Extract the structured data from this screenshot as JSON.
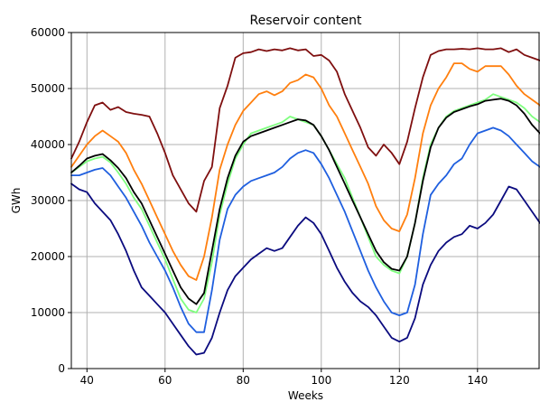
{
  "chart_data": {
    "type": "line",
    "title": "Reservoir content",
    "xlabel": "Weeks",
    "ylabel": "GWh",
    "xlim": [
      36,
      156
    ],
    "ylim": [
      0,
      60000
    ],
    "xticks": [
      40,
      60,
      80,
      100,
      120,
      140
    ],
    "yticks": [
      0,
      10000,
      20000,
      30000,
      40000,
      50000,
      60000
    ],
    "xtick_labels": [
      "40",
      "60",
      "80",
      "100",
      "120",
      "140"
    ],
    "ytick_labels": [
      "0",
      "10000",
      "20000",
      "30000",
      "40000",
      "50000",
      "60000"
    ],
    "grid": true,
    "legend": "none",
    "series": [
      {
        "color": "#7f0f0f",
        "x": [
          36,
          38,
          40,
          42,
          44,
          46,
          48,
          50,
          52,
          54,
          56,
          58,
          60,
          62,
          64,
          66,
          68,
          70,
          72,
          74,
          76,
          78,
          80,
          82,
          84,
          86,
          88,
          90,
          92,
          94,
          96,
          98,
          100,
          102,
          104,
          106,
          108,
          110,
          112,
          114,
          116,
          118,
          120,
          122,
          124,
          126,
          128,
          130,
          132,
          134,
          136,
          138,
          140,
          142,
          144,
          146,
          148,
          150,
          152,
          154,
          156
        ],
        "y": [
          37500,
          40500,
          44000,
          47000,
          47500,
          46200,
          46700,
          45800,
          45500,
          45300,
          45000,
          42000,
          38500,
          34500,
          32000,
          29500,
          28000,
          33500,
          36000,
          46500,
          50500,
          55500,
          56300,
          56500,
          57000,
          56700,
          57000,
          56800,
          57200,
          56800,
          57000,
          55800,
          56000,
          55000,
          53000,
          49000,
          46000,
          43000,
          39500,
          38000,
          40000,
          38500,
          36500,
          40500,
          46500,
          52000,
          56000,
          56700,
          57000,
          57000,
          57100,
          57000,
          57200,
          57000,
          57000,
          57200,
          56500,
          57000,
          56000,
          55500,
          55000
        ]
      },
      {
        "color": "#ff7f0e",
        "x": [
          36,
          38,
          40,
          42,
          44,
          46,
          48,
          50,
          52,
          54,
          56,
          58,
          60,
          62,
          64,
          66,
          68,
          70,
          72,
          74,
          76,
          78,
          80,
          82,
          84,
          86,
          88,
          90,
          92,
          94,
          96,
          98,
          100,
          102,
          104,
          106,
          108,
          110,
          112,
          114,
          116,
          118,
          120,
          122,
          124,
          126,
          128,
          130,
          132,
          134,
          136,
          138,
          140,
          142,
          144,
          146,
          148,
          150,
          152,
          154,
          156
        ],
        "y": [
          36000,
          38000,
          40000,
          41500,
          42500,
          41500,
          40500,
          38500,
          35500,
          33000,
          30000,
          27000,
          24000,
          21000,
          18500,
          16500,
          15800,
          20000,
          27000,
          35500,
          40000,
          43500,
          46000,
          47500,
          49000,
          49500,
          48800,
          49500,
          51000,
          51500,
          52500,
          52000,
          50000,
          47000,
          45000,
          42000,
          39000,
          36000,
          33000,
          29000,
          26500,
          25000,
          24500,
          27500,
          34000,
          42000,
          47000,
          50000,
          52000,
          54500,
          54500,
          53500,
          53000,
          54000,
          54000,
          54000,
          52500,
          50500,
          49000,
          48000,
          47000
        ]
      },
      {
        "color": "#7fff7f",
        "x": [
          36,
          38,
          40,
          42,
          44,
          46,
          48,
          50,
          52,
          54,
          56,
          58,
          60,
          62,
          64,
          66,
          68,
          70,
          72,
          74,
          76,
          78,
          80,
          82,
          84,
          86,
          88,
          90,
          92,
          94,
          96,
          98,
          100,
          102,
          104,
          106,
          108,
          110,
          112,
          114,
          116,
          118,
          120,
          122,
          124,
          126,
          128,
          130,
          132,
          134,
          136,
          138,
          140,
          142,
          144,
          146,
          148,
          150,
          152,
          154,
          156
        ],
        "y": [
          35000,
          36000,
          37000,
          37500,
          37800,
          36800,
          35000,
          33000,
          30500,
          28500,
          25500,
          22500,
          19500,
          16000,
          12500,
          10500,
          10000,
          12500,
          19000,
          27500,
          33000,
          37500,
          40000,
          42000,
          42500,
          43000,
          43500,
          44000,
          45000,
          44500,
          44000,
          43500,
          41500,
          39000,
          36500,
          34000,
          30500,
          27000,
          23500,
          20000,
          18500,
          17500,
          17000,
          20000,
          26000,
          34000,
          40000,
          43000,
          45000,
          46000,
          46500,
          47000,
          47500,
          48000,
          49000,
          48500,
          48000,
          47500,
          46500,
          45000,
          44000
        ]
      },
      {
        "color": "#000000",
        "x": [
          36,
          38,
          40,
          42,
          44,
          46,
          48,
          50,
          52,
          54,
          56,
          58,
          60,
          62,
          64,
          66,
          68,
          70,
          72,
          74,
          76,
          78,
          80,
          82,
          84,
          86,
          88,
          90,
          92,
          94,
          96,
          98,
          100,
          102,
          104,
          106,
          108,
          110,
          112,
          114,
          116,
          118,
          120,
          122,
          124,
          126,
          128,
          130,
          132,
          134,
          136,
          138,
          140,
          142,
          144,
          146,
          148,
          150,
          152,
          154,
          156
        ],
        "y": [
          35000,
          36200,
          37500,
          38000,
          38300,
          37200,
          35800,
          34000,
          31500,
          29500,
          26500,
          23500,
          20500,
          17500,
          14500,
          12500,
          11500,
          13500,
          21000,
          28500,
          34000,
          38000,
          40500,
          41500,
          42000,
          42500,
          43000,
          43500,
          44000,
          44500,
          44300,
          43500,
          41500,
          39000,
          36000,
          33000,
          30000,
          27000,
          24000,
          21000,
          19000,
          17800,
          17500,
          20000,
          26000,
          33500,
          39500,
          43000,
          44800,
          45800,
          46300,
          46800,
          47200,
          47800,
          48000,
          48200,
          47800,
          47000,
          45500,
          43500,
          42000
        ]
      },
      {
        "color": "#1f5fdf",
        "x": [
          36,
          38,
          40,
          42,
          44,
          46,
          48,
          50,
          52,
          54,
          56,
          58,
          60,
          62,
          64,
          66,
          68,
          70,
          72,
          74,
          76,
          78,
          80,
          82,
          84,
          86,
          88,
          90,
          92,
          94,
          96,
          98,
          100,
          102,
          104,
          106,
          108,
          110,
          112,
          114,
          116,
          118,
          120,
          122,
          124,
          126,
          128,
          130,
          132,
          134,
          136,
          138,
          140,
          142,
          144,
          146,
          148,
          150,
          152,
          154,
          156
        ],
        "y": [
          34500,
          34500,
          35000,
          35500,
          35800,
          34500,
          32500,
          30500,
          28000,
          25500,
          22500,
          20000,
          17500,
          14500,
          11000,
          8000,
          6500,
          6500,
          14000,
          23000,
          28500,
          31000,
          32500,
          33500,
          34000,
          34500,
          35000,
          36000,
          37500,
          38500,
          39000,
          38500,
          36500,
          34000,
          31000,
          28000,
          24500,
          21000,
          17500,
          14500,
          12000,
          10000,
          9500,
          10000,
          15000,
          24000,
          31000,
          33000,
          34500,
          36500,
          37500,
          40000,
          42000,
          42500,
          43000,
          42500,
          41500,
          40000,
          38500,
          37000,
          36000
        ]
      },
      {
        "color": "#0b0b7f",
        "x": [
          36,
          38,
          40,
          42,
          44,
          46,
          48,
          50,
          52,
          54,
          56,
          58,
          60,
          62,
          64,
          66,
          68,
          70,
          72,
          74,
          76,
          78,
          80,
          82,
          84,
          86,
          88,
          90,
          92,
          94,
          96,
          98,
          100,
          102,
          104,
          106,
          108,
          110,
          112,
          114,
          116,
          118,
          120,
          122,
          124,
          126,
          128,
          130,
          132,
          134,
          136,
          138,
          140,
          142,
          144,
          146,
          148,
          150,
          152,
          154,
          156
        ],
        "y": [
          33000,
          32000,
          31500,
          29500,
          28000,
          26500,
          24000,
          21000,
          17500,
          14500,
          13000,
          11500,
          10000,
          8000,
          6000,
          4000,
          2500,
          2800,
          5500,
          10000,
          14000,
          16500,
          18000,
          19500,
          20500,
          21500,
          21000,
          21500,
          23500,
          25500,
          27000,
          26000,
          24000,
          21000,
          18000,
          15500,
          13500,
          12000,
          11000,
          9500,
          7500,
          5500,
          4800,
          5500,
          9000,
          15000,
          18500,
          21000,
          22500,
          23500,
          24000,
          25500,
          25000,
          26000,
          27500,
          30000,
          32500,
          32000,
          30000,
          28000,
          26000
        ]
      }
    ]
  }
}
